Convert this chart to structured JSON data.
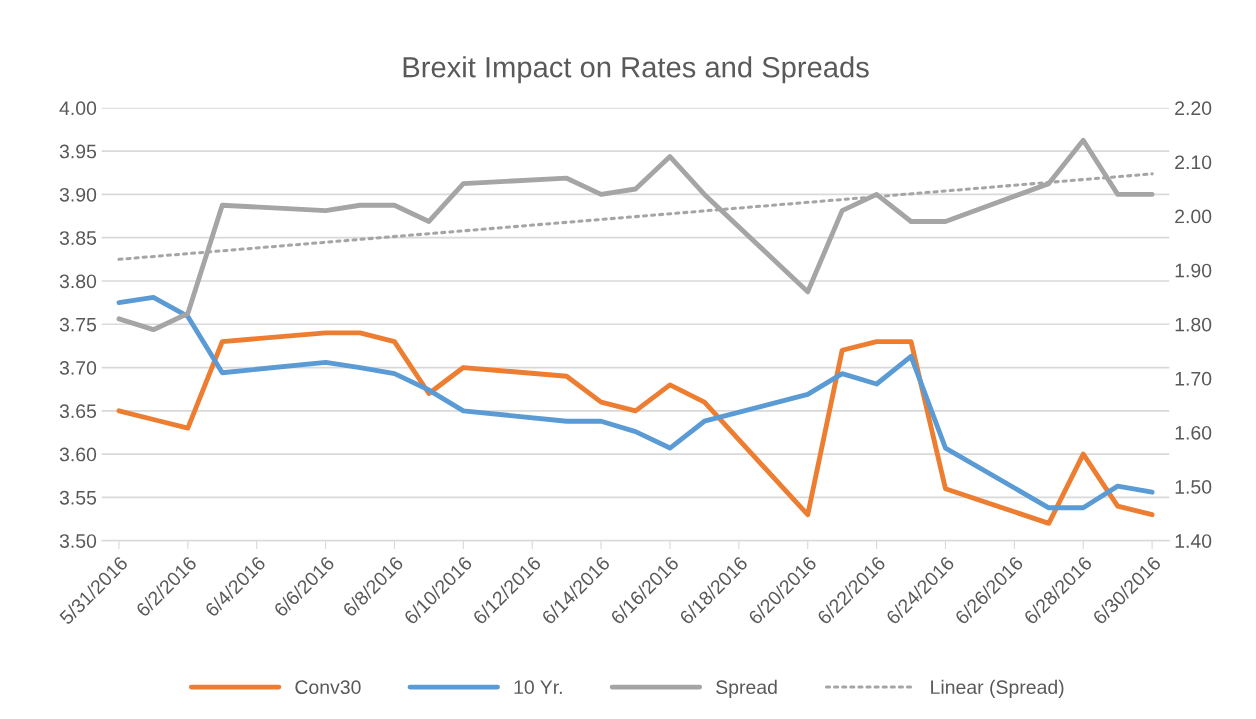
{
  "chart_data": {
    "type": "line",
    "title": "Brexit Impact on Rates and Spreads",
    "x": [
      "2016-05-31",
      "2016-06-01",
      "2016-06-02",
      "2016-06-03",
      "2016-06-06",
      "2016-06-07",
      "2016-06-08",
      "2016-06-09",
      "2016-06-10",
      "2016-06-13",
      "2016-06-14",
      "2016-06-15",
      "2016-06-16",
      "2016-06-17",
      "2016-06-20",
      "2016-06-21",
      "2016-06-22",
      "2016-06-23",
      "2016-06-24",
      "2016-06-27",
      "2016-06-28",
      "2016-06-29",
      "2016-06-30"
    ],
    "series": [
      {
        "name": "Conv30",
        "color": "#ed7d31",
        "values": [
          3.65,
          3.64,
          3.63,
          3.73,
          3.74,
          3.74,
          3.73,
          3.67,
          3.7,
          3.69,
          3.66,
          3.65,
          3.68,
          3.66,
          3.53,
          3.72,
          3.73,
          3.73,
          3.56,
          3.52,
          3.6,
          3.54,
          3.53
        ]
      },
      {
        "name": "10 Yr.",
        "color": "#5b9bd5",
        "values": [
          3.775,
          3.781,
          3.759,
          3.694,
          3.706,
          3.7,
          3.693,
          3.674,
          3.65,
          3.638,
          3.638,
          3.626,
          3.607,
          3.638,
          3.669,
          3.693,
          3.681,
          3.713,
          3.607,
          3.538,
          3.538,
          3.563,
          3.556
        ]
      },
      {
        "name": "Spread",
        "color": "#a5a5a5",
        "axis": "y2",
        "values": [
          1.81,
          1.79,
          1.82,
          2.02,
          2.01,
          2.02,
          2.02,
          1.99,
          2.06,
          2.07,
          2.04,
          2.05,
          2.11,
          2.04,
          1.86,
          2.01,
          2.04,
          1.99,
          1.99,
          2.06,
          2.14,
          2.04,
          2.04
        ]
      },
      {
        "name": "Linear (Spread)",
        "color": "#a5a5a5",
        "axis": "y2",
        "type": "line",
        "line_style": "dotted",
        "x": [
          "2016-05-31",
          "2016-06-30"
        ],
        "values": [
          1.92,
          2.078
        ]
      }
    ],
    "xlim": [
      "2016-05-30T12:00",
      "2016-06-30T12:00"
    ],
    "xticks": [
      {
        "value": "2016-05-31",
        "label": "5/31/2016"
      },
      {
        "value": "2016-06-02",
        "label": "6/2/2016"
      },
      {
        "value": "2016-06-04",
        "label": "6/4/2016"
      },
      {
        "value": "2016-06-06",
        "label": "6/6/2016"
      },
      {
        "value": "2016-06-08",
        "label": "6/8/2016"
      },
      {
        "value": "2016-06-10",
        "label": "6/10/2016"
      },
      {
        "value": "2016-06-12",
        "label": "6/12/2016"
      },
      {
        "value": "2016-06-14",
        "label": "6/14/2016"
      },
      {
        "value": "2016-06-16",
        "label": "6/16/2016"
      },
      {
        "value": "2016-06-18",
        "label": "6/18/2016"
      },
      {
        "value": "2016-06-20",
        "label": "6/20/2016"
      },
      {
        "value": "2016-06-22",
        "label": "6/22/2016"
      },
      {
        "value": "2016-06-24",
        "label": "6/24/2016"
      },
      {
        "value": "2016-06-26",
        "label": "6/26/2016"
      },
      {
        "value": "2016-06-28",
        "label": "6/28/2016"
      },
      {
        "value": "2016-06-30",
        "label": "6/30/2016"
      }
    ],
    "ylim": [
      3.5,
      4.0
    ],
    "yticks": [
      {
        "value": 3.5,
        "label": "3.50"
      },
      {
        "value": 3.55,
        "label": "3.55"
      },
      {
        "value": 3.6,
        "label": "3.60"
      },
      {
        "value": 3.65,
        "label": "3.65"
      },
      {
        "value": 3.7,
        "label": "3.70"
      },
      {
        "value": 3.75,
        "label": "3.75"
      },
      {
        "value": 3.8,
        "label": "3.80"
      },
      {
        "value": 3.85,
        "label": "3.85"
      },
      {
        "value": 3.9,
        "label": "3.90"
      },
      {
        "value": 3.95,
        "label": "3.95"
      },
      {
        "value": 4.0,
        "label": "4.00"
      }
    ],
    "y2lim": [
      1.4,
      2.2
    ],
    "y2ticks": [
      {
        "value": 1.4,
        "label": "1.40"
      },
      {
        "value": 1.5,
        "label": "1.50"
      },
      {
        "value": 1.6,
        "label": "1.60"
      },
      {
        "value": 1.7,
        "label": "1.70"
      },
      {
        "value": 1.8,
        "label": "1.80"
      },
      {
        "value": 1.9,
        "label": "1.90"
      },
      {
        "value": 2.0,
        "label": "2.00"
      },
      {
        "value": 2.1,
        "label": "2.10"
      },
      {
        "value": 2.2,
        "label": "2.20"
      }
    ],
    "grid": "y",
    "legend": "bottom",
    "marker": "none",
    "line_style": "solid"
  }
}
